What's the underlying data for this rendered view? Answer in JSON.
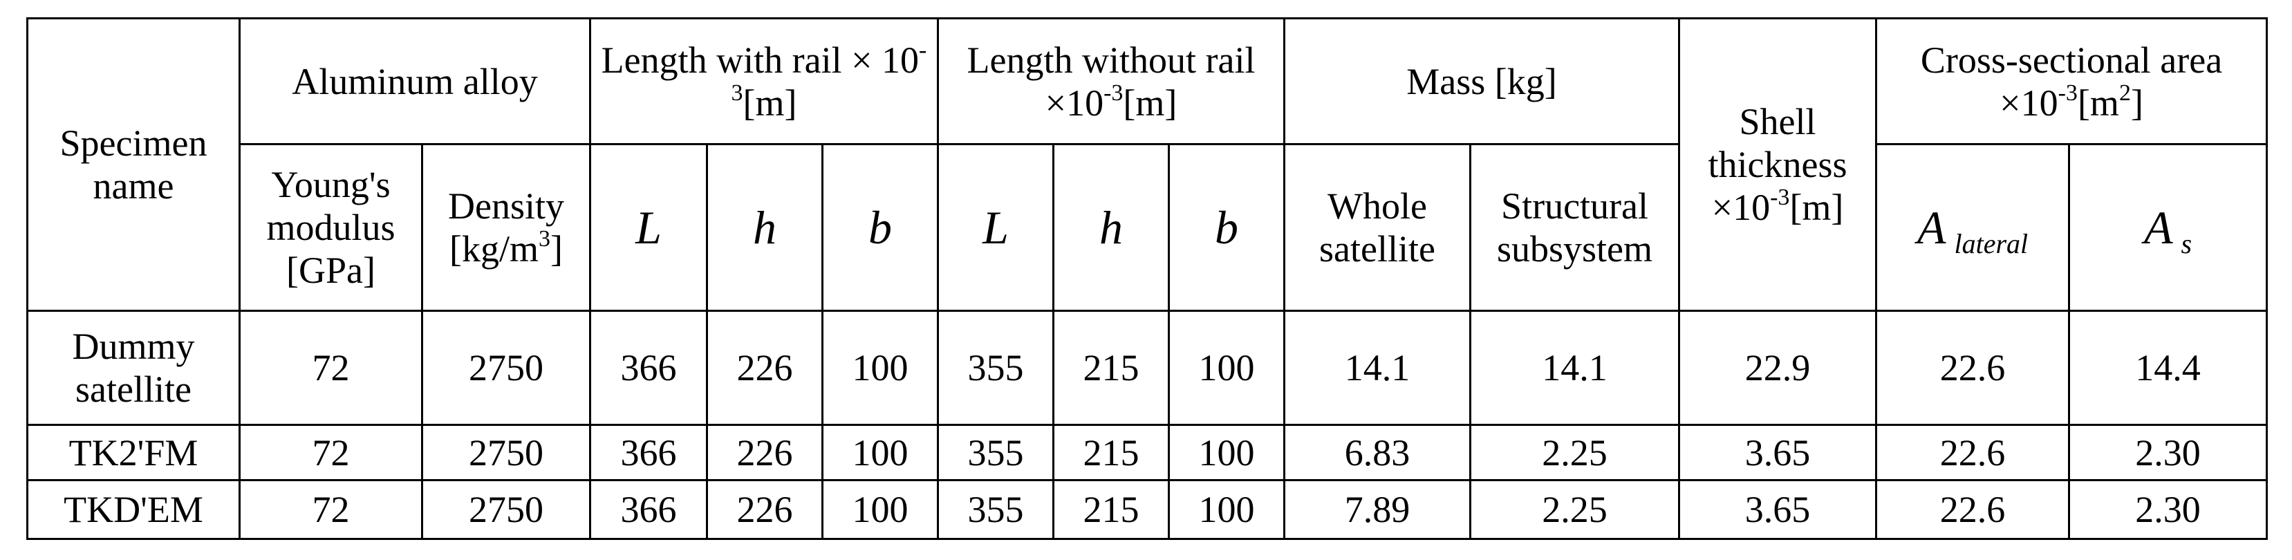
{
  "table": {
    "header_top": [
      "Specimen name",
      "Aluminum alloy",
      {
        "parts": [
          {
            "text": "Length with rail × 10"
          },
          {
            "sup": "-3"
          },
          {
            "text": "[m]"
          }
        ]
      },
      {
        "parts": [
          {
            "text": "Length without rail ×10"
          },
          {
            "sup": "-3"
          },
          {
            "text": "[m]"
          }
        ]
      },
      "Mass [kg]",
      {
        "parts": [
          {
            "text": "Shell thickness ×10"
          },
          {
            "sup": "-3"
          },
          {
            "text": "[m]"
          }
        ]
      },
      {
        "parts": [
          {
            "text": "Cross-sectional area ×10"
          },
          {
            "sup": "-3"
          },
          {
            "text": "[m"
          },
          {
            "sup": "2"
          },
          {
            "text": "]"
          }
        ]
      }
    ],
    "header_sub": [
      "Young's modulus [GPa]",
      {
        "parts": [
          {
            "text": "Density [kg/m"
          },
          {
            "sup": "3"
          },
          {
            "text": "]"
          }
        ]
      },
      "L",
      "h",
      "b",
      "L",
      "h",
      "b",
      "Whole satellite",
      "Structural subsystem",
      {
        "parts": [
          {
            "text": "A"
          },
          {
            "sub": "lateral"
          }
        ]
      },
      {
        "parts": [
          {
            "text": "A"
          },
          {
            "sub": "s"
          }
        ]
      }
    ],
    "rows": [
      [
        "Dummy satellite",
        "72",
        "2750",
        "366",
        "226",
        "100",
        "355",
        "215",
        "100",
        "14.1",
        "14.1",
        "22.9",
        "22.6",
        "14.4"
      ],
      [
        "TK2'FM",
        "72",
        "2750",
        "366",
        "226",
        "100",
        "355",
        "215",
        "100",
        "6.83",
        "2.25",
        "3.65",
        "22.6",
        "2.30"
      ],
      [
        "TKD'EM",
        "72",
        "2750",
        "366",
        "226",
        "100",
        "355",
        "215",
        "100",
        "7.89",
        "2.25",
        "3.65",
        "22.6",
        "2.30"
      ]
    ]
  }
}
